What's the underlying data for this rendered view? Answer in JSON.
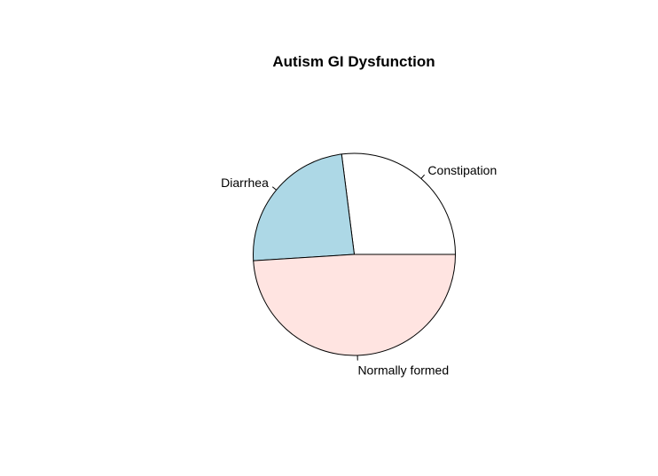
{
  "chart_data": {
    "type": "pie",
    "title": "Autism GI Dysfunction",
    "slices": [
      {
        "label": "Constipation",
        "value": 27,
        "color": "#ffffff"
      },
      {
        "label": "Diarrhea",
        "value": 24,
        "color": "#add8e6"
      },
      {
        "label": "Normally formed",
        "value": 49,
        "color": "#ffe4e1"
      }
    ],
    "start_angle_deg": 0,
    "direction": "counterclockwise",
    "legend": "none"
  }
}
